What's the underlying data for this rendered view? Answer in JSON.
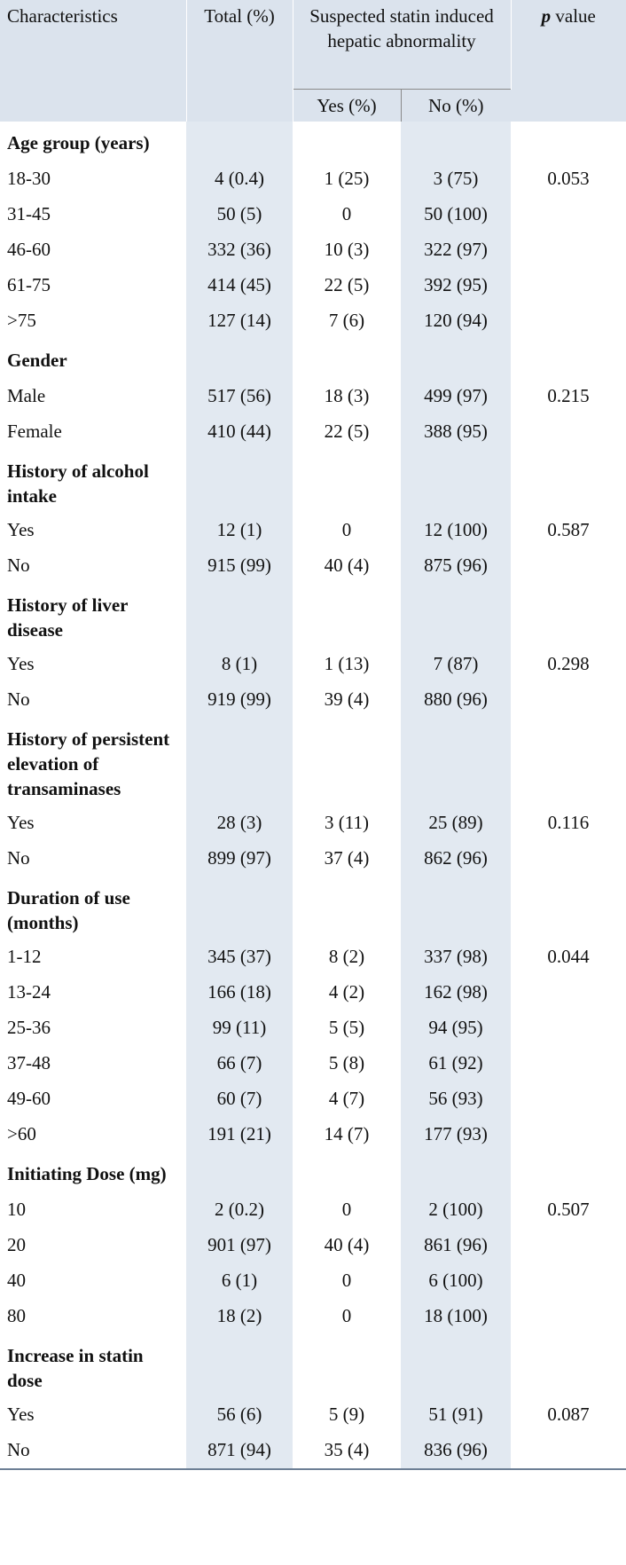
{
  "header": {
    "characteristics": "Characteristics",
    "total": "Total (%)",
    "suspected": "Suspected statin induced hepatic abnormality",
    "yes": "Yes (%)",
    "no": "No (%)",
    "p_italic": "p",
    "p_rest": " value"
  },
  "rows": [
    {
      "type": "cat",
      "label": "Age group (years)"
    },
    {
      "type": "row",
      "label": "18-30",
      "total": "4 (0.4)",
      "yes": "1 (25)",
      "no": "3 (75)",
      "p": "0.053"
    },
    {
      "type": "row",
      "label": "31-45",
      "total": "50 (5)",
      "yes": "0",
      "no": "50 (100)",
      "p": ""
    },
    {
      "type": "row",
      "label": "46-60",
      "total": "332 (36)",
      "yes": "10 (3)",
      "no": "322 (97)",
      "p": ""
    },
    {
      "type": "row",
      "label": "61-75",
      "total": "414 (45)",
      "yes": "22 (5)",
      "no": "392 (95)",
      "p": ""
    },
    {
      "type": "row",
      "label": ">75",
      "total": "127 (14)",
      "yes": "7 (6)",
      "no": "120 (94)",
      "p": ""
    },
    {
      "type": "cat",
      "label": "Gender"
    },
    {
      "type": "row",
      "label": "Male",
      "total": "517 (56)",
      "yes": "18 (3)",
      "no": "499 (97)",
      "p": "0.215"
    },
    {
      "type": "row",
      "label": "Female",
      "total": "410 (44)",
      "yes": "22 (5)",
      "no": "388 (95)",
      "p": ""
    },
    {
      "type": "cat",
      "label": "History of alcohol intake"
    },
    {
      "type": "row",
      "label": "Yes",
      "total": "12 (1)",
      "yes": "0",
      "no": "12 (100)",
      "p": "0.587"
    },
    {
      "type": "row",
      "label": "No",
      "total": "915 (99)",
      "yes": "40 (4)",
      "no": "875 (96)",
      "p": ""
    },
    {
      "type": "cat",
      "label": "History of liver disease"
    },
    {
      "type": "row",
      "label": "Yes",
      "total": "8 (1)",
      "yes": "1 (13)",
      "no": "7 (87)",
      "p": "0.298"
    },
    {
      "type": "row",
      "label": "No",
      "total": "919 (99)",
      "yes": "39 (4)",
      "no": "880 (96)",
      "p": ""
    },
    {
      "type": "cat",
      "label": "History of persistent elevation of transaminases"
    },
    {
      "type": "row",
      "label": "Yes",
      "total": "28 (3)",
      "yes": "3 (11)",
      "no": "25 (89)",
      "p": "0.116"
    },
    {
      "type": "row",
      "label": "No",
      "total": "899 (97)",
      "yes": "37 (4)",
      "no": "862 (96)",
      "p": ""
    },
    {
      "type": "cat",
      "label": "Duration of use (months)"
    },
    {
      "type": "row",
      "label": "1-12",
      "total": "345 (37)",
      "yes": "8 (2)",
      "no": "337 (98)",
      "p": "0.044"
    },
    {
      "type": "row",
      "label": "13-24",
      "total": "166 (18)",
      "yes": "4 (2)",
      "no": "162 (98)",
      "p": ""
    },
    {
      "type": "row",
      "label": "25-36",
      "total": "99 (11)",
      "yes": "5 (5)",
      "no": "94 (95)",
      "p": ""
    },
    {
      "type": "row",
      "label": "37-48",
      "total": "66 (7)",
      "yes": "5 (8)",
      "no": "61 (92)",
      "p": ""
    },
    {
      "type": "row",
      "label": "49-60",
      "total": "60 (7)",
      "yes": "4 (7)",
      "no": "56 (93)",
      "p": ""
    },
    {
      "type": "row",
      "label": ">60",
      "total": "191 (21)",
      "yes": "14 (7)",
      "no": "177 (93)",
      "p": ""
    },
    {
      "type": "cat",
      "label": "Initiating Dose (mg)"
    },
    {
      "type": "row",
      "label": "10",
      "total": "2 (0.2)",
      "yes": "0",
      "no": "2 (100)",
      "p": "0.507"
    },
    {
      "type": "row",
      "label": "20",
      "total": "901 (97)",
      "yes": "40 (4)",
      "no": "861 (96)",
      "p": ""
    },
    {
      "type": "row",
      "label": "40",
      "total": "6 (1)",
      "yes": "0",
      "no": "6 (100)",
      "p": ""
    },
    {
      "type": "row",
      "label": "80",
      "total": "18 (2)",
      "yes": "0",
      "no": "18 (100)",
      "p": ""
    },
    {
      "type": "cat",
      "label": "Increase in statin dose"
    },
    {
      "type": "row",
      "label": "Yes",
      "total": "56 (6)",
      "yes": "5 (9)",
      "no": "51 (91)",
      "p": "0.087"
    },
    {
      "type": "row",
      "label": "No",
      "total": "871 (94)",
      "yes": "35 (4)",
      "no": "836 (96)",
      "p": ""
    }
  ]
}
